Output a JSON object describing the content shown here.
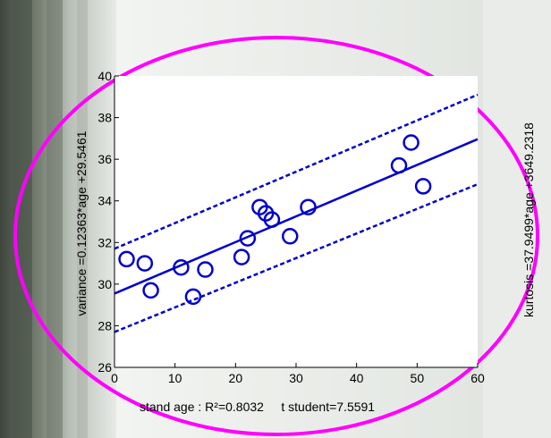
{
  "colors": {
    "series": "#0000cc",
    "ellipse": "#ff00ff",
    "axis": "#000000",
    "background_plot": "#ffffff",
    "photo_dark": "#5a6358",
    "photo_light": "#cfd4cf"
  },
  "chart_data": [
    {
      "type": "scatter",
      "title": "",
      "xlabel": "stand age",
      "xlabel_suffix": " : R²=0.8032     t student=7.5591",
      "ylabel": "variance =0.12363*age +29.5461",
      "xlim": [
        0,
        60
      ],
      "ylim": [
        26,
        40
      ],
      "xticks": [
        0,
        10,
        20,
        30,
        40,
        50,
        60
      ],
      "yticks": [
        26,
        28,
        30,
        32,
        34,
        36,
        38,
        40
      ],
      "grid": false,
      "legend": "none",
      "series": [
        {
          "kind": "points",
          "marker": "circle",
          "x": [
            2,
            5,
            6,
            11,
            13,
            15,
            21,
            22,
            24,
            25,
            26,
            29,
            32,
            47,
            49,
            51
          ],
          "y": [
            31.2,
            31.0,
            29.7,
            30.8,
            29.4,
            30.7,
            31.3,
            32.2,
            33.7,
            33.4,
            33.1,
            32.3,
            33.7,
            35.7,
            36.8,
            34.7
          ]
        },
        {
          "kind": "fit",
          "style": "solid",
          "x": [
            0,
            60
          ],
          "y": [
            29.5461,
            36.964
          ]
        },
        {
          "kind": "upper-bound",
          "style": "dashed",
          "x": [
            0,
            60
          ],
          "y": [
            31.7,
            39.1
          ]
        },
        {
          "kind": "lower-bound",
          "style": "dashed",
          "x": [
            0,
            60
          ],
          "y": [
            27.7,
            34.8
          ]
        }
      ]
    },
    {
      "type": "scatter",
      "title": "",
      "xlabel": "",
      "ylabel": "kurtosis =37.9499*age +3649.2318",
      "note": "second chart is cut off at the right edge; only its y-axis label is visible"
    }
  ]
}
